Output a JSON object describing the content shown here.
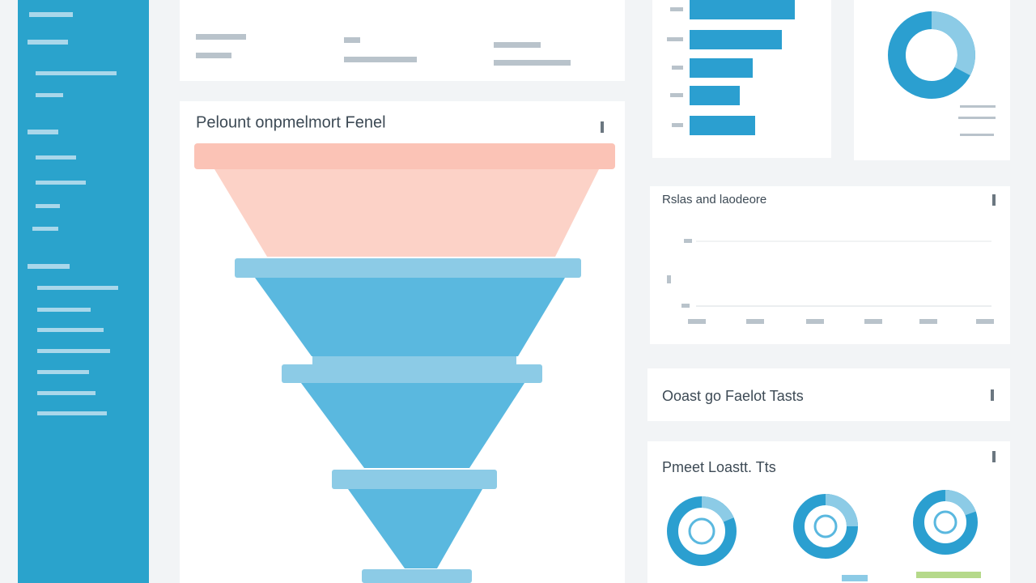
{
  "panels": {
    "funnel": {
      "title": "Pelount onpmelmort Fenel"
    },
    "line": {
      "title": "Rslas and laodeore"
    },
    "tasks": {
      "title": "Ooast go Faelot Tasts"
    },
    "donuts": {
      "title": "Pmeet Loastt. Tts"
    }
  }
}
